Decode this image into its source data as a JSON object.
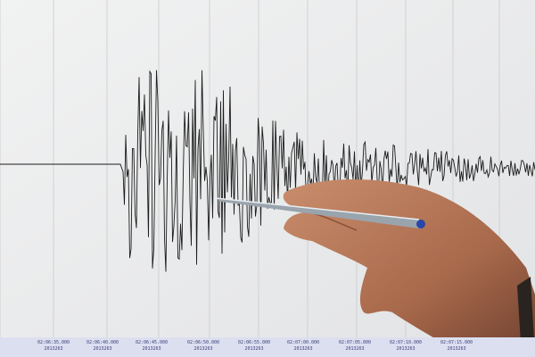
{
  "screen": {
    "background": "#eceded",
    "grid_color": "#c9cbcf",
    "trace_color": "#1c1c1c"
  },
  "time_axis": [
    {
      "time": "02:06:35.000",
      "id": "2013263"
    },
    {
      "time": "02:06:40.000",
      "id": "2013263"
    },
    {
      "time": "02:06:45.000",
      "id": "2013263"
    },
    {
      "time": "02:06:50.000",
      "id": "2013263"
    },
    {
      "time": "02:06:55.000",
      "id": "2013263"
    },
    {
      "time": "02:07:00.000",
      "id": "2013263"
    },
    {
      "time": "02:07:05.000",
      "id": "2013263"
    },
    {
      "time": "02:07:10.000",
      "id": "2013263"
    },
    {
      "time": "02:07:15.000",
      "id": "2013263"
    }
  ]
}
